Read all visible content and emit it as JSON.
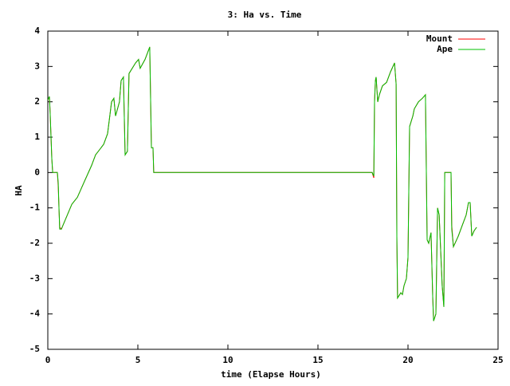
{
  "chart_data": {
    "type": "line",
    "title": "3: Ha vs. Time",
    "x_label": "time (Elapse Hours)",
    "y_label": "HA",
    "x": [
      0,
      0.09,
      0.13,
      0.22,
      0.27,
      0.53,
      0.58,
      0.62,
      0.66,
      0.75,
      1.33,
      1.64,
      1.99,
      2.43,
      2.65,
      2.88,
      3.1,
      3.32,
      3.54,
      3.67,
      3.76,
      3.98,
      4.07,
      4.2,
      4.29,
      4.42,
      4.51,
      4.87,
      5.04,
      5.13,
      5.4,
      5.66,
      5.75,
      5.84,
      5.88,
      18.01,
      18.1,
      18.14,
      18.19,
      18.23,
      18.32,
      18.41,
      18.58,
      18.81,
      19.03,
      19.25,
      19.34,
      19.38,
      19.42,
      19.6,
      19.69,
      19.78,
      19.91,
      20.0,
      20.09,
      20.27,
      20.35,
      20.58,
      20.8,
      20.97,
      21.06,
      21.15,
      21.28,
      21.37,
      21.42,
      21.55,
      21.64,
      21.73,
      21.9,
      21.99,
      22.04,
      22.39,
      22.43,
      22.52,
      22.79,
      23.01,
      23.23,
      23.36,
      23.45,
      23.54,
      23.67,
      23.81
    ],
    "series": [
      {
        "name": "Mount",
        "color": "#ff0000",
        "values": [
          2.05,
          2.15,
          1.7,
          0.4,
          0,
          0,
          -0.4,
          -1.0,
          -1.55,
          -1.6,
          -0.9,
          -0.7,
          -0.3,
          0.2,
          0.5,
          0.65,
          0.8,
          1.1,
          2.0,
          2.1,
          1.6,
          2.0,
          2.6,
          2.7,
          0.5,
          0.6,
          2.8,
          3.1,
          3.2,
          2.95,
          3.2,
          3.55,
          0.7,
          0.7,
          0,
          0,
          -0.15,
          2.0,
          2.6,
          2.7,
          2.0,
          2.2,
          2.45,
          2.55,
          2.85,
          3.1,
          2.5,
          -1.8,
          -3.55,
          -3.4,
          -3.45,
          -3.2,
          -3.0,
          -2.4,
          1.3,
          1.6,
          1.8,
          2.0,
          2.1,
          2.2,
          -1.9,
          -2.0,
          -1.7,
          -3.5,
          -4.2,
          -4.0,
          -1.0,
          -1.2,
          -3.2,
          -3.8,
          0,
          0,
          -1.5,
          -2.1,
          -1.8,
          -1.5,
          -1.2,
          -0.85,
          -0.85,
          -1.8,
          -1.65,
          -1.55
        ]
      },
      {
        "name": "Ape",
        "color": "#00c000",
        "values": [
          2.05,
          2.15,
          1.7,
          0.4,
          0,
          0,
          -0.3,
          -1.0,
          -1.6,
          -1.6,
          -0.9,
          -0.7,
          -0.3,
          0.2,
          0.5,
          0.65,
          0.8,
          1.1,
          2.0,
          2.1,
          1.6,
          2.0,
          2.6,
          2.7,
          0.5,
          0.6,
          2.8,
          3.1,
          3.2,
          2.95,
          3.2,
          3.55,
          0.7,
          0.7,
          0,
          0,
          -0.1,
          2.0,
          2.6,
          2.7,
          2.0,
          2.2,
          2.45,
          2.55,
          2.85,
          3.1,
          2.5,
          -1.8,
          -3.55,
          -3.4,
          -3.45,
          -3.2,
          -3.0,
          -2.4,
          1.3,
          1.6,
          1.8,
          2.0,
          2.1,
          2.2,
          -1.9,
          -2.0,
          -1.7,
          -3.5,
          -4.2,
          -4.0,
          -1.0,
          -1.2,
          -3.2,
          -3.8,
          0,
          0,
          -1.6,
          -2.1,
          -1.8,
          -1.5,
          -1.2,
          -0.85,
          -0.85,
          -1.8,
          -1.65,
          -1.55
        ]
      }
    ],
    "xlim": [
      0,
      25
    ],
    "xticks": [
      0,
      5,
      10,
      15,
      20,
      25
    ],
    "ylim": [
      -5,
      4
    ],
    "yticks": [
      -5,
      -4,
      -3,
      -2,
      -1,
      0,
      1,
      2,
      3,
      4
    ],
    "legend": "top-right"
  }
}
